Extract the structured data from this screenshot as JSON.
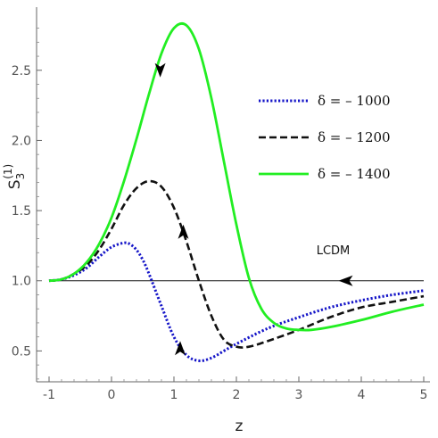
{
  "chart_data": {
    "type": "line",
    "xlabel": "z",
    "ylabel": "S",
    "ylabel_sub": "3",
    "ylabel_sup": "(1)",
    "xlim": [
      -1.2,
      5.1
    ],
    "ylim": [
      0.28,
      2.95
    ],
    "x_ticks": [
      -1,
      0,
      1,
      2,
      3,
      4,
      5
    ],
    "x_tick_labels": [
      "-1",
      "0",
      "1",
      "2",
      "3",
      "4",
      "5"
    ],
    "y_ticks": [
      0.5,
      1.0,
      1.5,
      2.0,
      2.5
    ],
    "y_tick_labels": [
      "0.5",
      "1.0",
      "1.5",
      "2.0",
      "2.5"
    ],
    "legend_placement": "top-right",
    "grid": false,
    "series": [
      {
        "name": "δ = – 1000",
        "color": "#1515c8",
        "style": "dotted",
        "x": [
          -1.0,
          -0.8,
          -0.6,
          -0.4,
          -0.2,
          0.0,
          0.2,
          0.3,
          0.4,
          0.5,
          0.6,
          0.8,
          1.0,
          1.2,
          1.4,
          1.6,
          1.8,
          2.0,
          2.5,
          3.0,
          3.5,
          4.0,
          4.5,
          5.0
        ],
        "y": [
          1.0,
          1.01,
          1.04,
          1.09,
          1.17,
          1.24,
          1.27,
          1.26,
          1.22,
          1.15,
          1.05,
          0.82,
          0.6,
          0.47,
          0.43,
          0.45,
          0.5,
          0.55,
          0.66,
          0.74,
          0.81,
          0.86,
          0.9,
          0.93
        ]
      },
      {
        "name": "δ = – 1200",
        "color": "#111111",
        "style": "dashed",
        "x": [
          -1.0,
          -0.8,
          -0.6,
          -0.4,
          -0.2,
          0.0,
          0.2,
          0.4,
          0.6,
          0.8,
          1.0,
          1.2,
          1.4,
          1.6,
          1.8,
          2.0,
          2.2,
          2.5,
          3.0,
          3.5,
          4.0,
          4.5,
          5.0
        ],
        "y": [
          1.0,
          1.01,
          1.05,
          1.11,
          1.22,
          1.37,
          1.54,
          1.66,
          1.71,
          1.67,
          1.52,
          1.28,
          1.0,
          0.75,
          0.58,
          0.53,
          0.53,
          0.57,
          0.65,
          0.74,
          0.81,
          0.85,
          0.89
        ]
      },
      {
        "name": "δ = – 1400",
        "color": "#22ee22",
        "style": "solid",
        "x": [
          -1.0,
          -0.8,
          -0.6,
          -0.4,
          -0.2,
          0.0,
          0.2,
          0.4,
          0.6,
          0.8,
          1.0,
          1.2,
          1.4,
          1.6,
          1.8,
          2.0,
          2.2,
          2.4,
          2.6,
          2.8,
          3.0,
          3.2,
          3.5,
          4.0,
          4.5,
          5.0
        ],
        "y": [
          1.0,
          1.01,
          1.05,
          1.13,
          1.26,
          1.45,
          1.71,
          2.01,
          2.33,
          2.62,
          2.8,
          2.82,
          2.65,
          2.3,
          1.85,
          1.4,
          1.02,
          0.8,
          0.7,
          0.66,
          0.65,
          0.65,
          0.67,
          0.72,
          0.78,
          0.83
        ]
      },
      {
        "name": "LCDM",
        "color": "#111111",
        "style": "thin",
        "x": [
          -1.0,
          5.0
        ],
        "y": [
          1.0,
          1.0
        ]
      }
    ],
    "annotations": [
      {
        "label": "LCDM",
        "x": 3.55,
        "y": 1.19
      }
    ],
    "arrows": [
      {
        "series": 2,
        "x": 0.78,
        "y": 2.5,
        "dir": "down"
      },
      {
        "series": 1,
        "x": 1.15,
        "y": 1.35,
        "dir": "up"
      },
      {
        "series": 0,
        "x": 1.1,
        "y": 0.52,
        "dir": "up"
      },
      {
        "series": 3,
        "x": 3.75,
        "y": 1.0,
        "dir": "left"
      }
    ]
  }
}
